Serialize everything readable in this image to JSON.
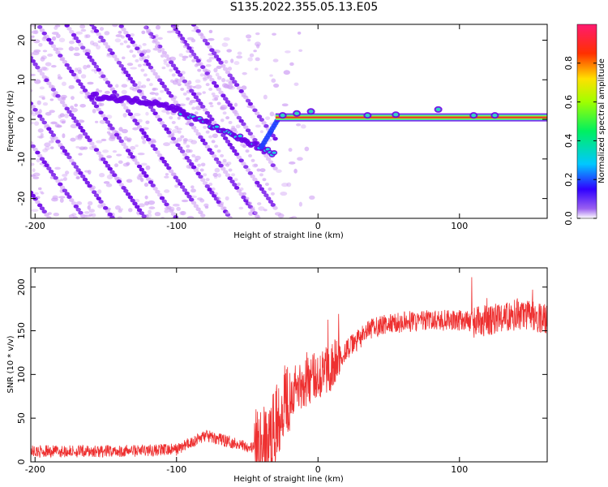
{
  "title": "S135.2022.355.05.13.E05",
  "colors": {
    "line": "#ee3030",
    "ridge_dark": "#6a00e8",
    "ridge_light": "#cfa0f4",
    "core": "#e8302c"
  },
  "chart_data": [
    {
      "type": "heatmap",
      "xlabel": "Height of straight line (km)",
      "ylabel": "Frequency (Hz)",
      "xlim": [
        -203,
        162
      ],
      "ylim": [
        -25,
        24
      ],
      "xticks": [
        -200,
        -100,
        0,
        100
      ],
      "yticks": [
        -20,
        -10,
        0,
        10,
        20
      ],
      "colorbar": {
        "label": "Normalized spectral amplitude",
        "range": [
          0,
          1
        ],
        "ticks": [
          "0.0",
          "0.2",
          "0.4",
          "0.6",
          "0.8"
        ]
      },
      "features": {
        "carrier_frequency": 0.5,
        "carrier_x_range": [
          -30,
          162
        ],
        "diagonal_slope_hz_per_km": -0.5
      }
    },
    {
      "type": "line",
      "xlabel": "Height of straight line (km)",
      "ylabel": "SNR (10 * v/v)",
      "xlim": [
        -203,
        162
      ],
      "ylim": [
        0,
        222
      ],
      "xticks": [
        -200,
        -100,
        0,
        100
      ],
      "yticks": [
        0,
        50,
        100,
        150,
        200
      ],
      "series": [
        {
          "x": [
            -203,
            -150,
            -100,
            -80,
            -60,
            -45,
            -35,
            -30,
            -25,
            -20,
            -10,
            0,
            10,
            20,
            30,
            40,
            60,
            80,
            100,
            110,
            120,
            140,
            162
          ],
          "values": [
            12,
            12,
            14,
            30,
            22,
            16,
            20,
            40,
            70,
            80,
            90,
            100,
            110,
            128,
            142,
            155,
            160,
            162,
            162,
            160,
            162,
            168,
            165
          ]
        }
      ]
    }
  ]
}
